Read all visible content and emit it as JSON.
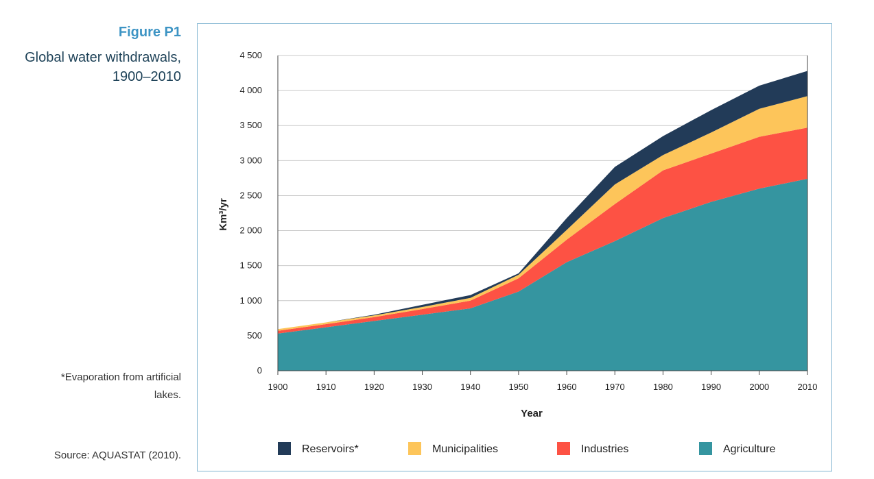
{
  "figure": {
    "label": "Figure P1",
    "title": "Global water withdrawals, 1900–2010",
    "footnote": "*Evaporation from artificial lakes.",
    "source": "Source: AQUASTAT (2010)."
  },
  "colors": {
    "Agriculture": "#3595a0",
    "Industries": "#fd5244",
    "Municipalities": "#fdc55a",
    "Reservoirs*": "#223b58"
  },
  "chart_data": {
    "type": "area",
    "stacked": true,
    "title": "",
    "xlabel": "Year",
    "ylabel": "Km³/yr",
    "xlim": [
      1900,
      2010
    ],
    "ylim": [
      0,
      4500
    ],
    "x_ticks": [
      "1900",
      "1910",
      "1920",
      "1930",
      "1940",
      "1950",
      "1960",
      "1970",
      "1980",
      "1990",
      "2000",
      "2010"
    ],
    "y_ticks": [
      "0",
      "500",
      "1 000",
      "1 500",
      "2 000",
      "2 500",
      "3 000",
      "3 500",
      "4 000",
      "4 500"
    ],
    "grid": "horizontal",
    "legend_position": "bottom",
    "x": [
      1900,
      1910,
      1920,
      1930,
      1940,
      1950,
      1960,
      1970,
      1980,
      1990,
      2000,
      2010
    ],
    "series": [
      {
        "name": "Agriculture",
        "values": [
          530,
          620,
          710,
          800,
          890,
          1130,
          1550,
          1850,
          2180,
          2410,
          2600,
          2740
        ]
      },
      {
        "name": "Industries",
        "values": [
          40,
          45,
          55,
          80,
          110,
          190,
          320,
          530,
          680,
          690,
          740,
          730
        ]
      },
      {
        "name": "Municipalities",
        "values": [
          25,
          25,
          25,
          30,
          40,
          50,
          140,
          280,
          220,
          300,
          400,
          450
        ]
      },
      {
        "name": "Reservoirs*",
        "values": [
          0,
          0,
          10,
          30,
          40,
          20,
          170,
          250,
          270,
          320,
          330,
          360
        ]
      }
    ],
    "legend": [
      "Reservoirs*",
      "Municipalities",
      "Industries",
      "Agriculture"
    ]
  }
}
